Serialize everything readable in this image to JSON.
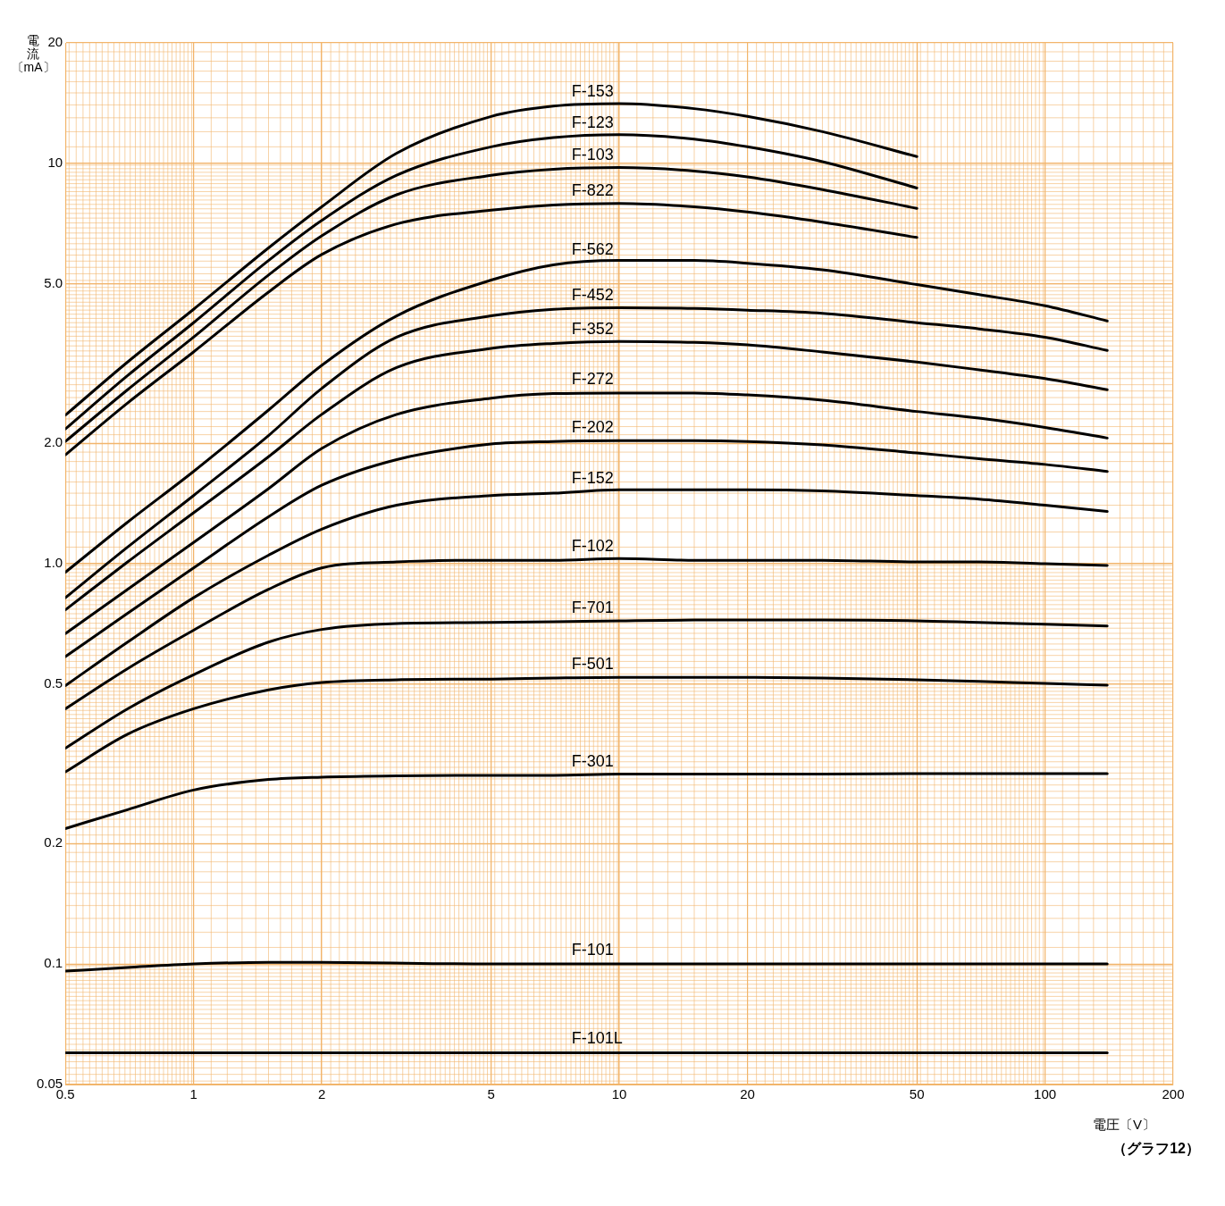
{
  "chart_data": {
    "type": "line",
    "xlabel": "電圧〔V〕",
    "ylabel": "電流〔mA〕",
    "annotations": [
      "（グラフ12）"
    ],
    "log": "xy",
    "grid": true,
    "legend": false,
    "marker": "none",
    "line_style": "solid",
    "xlim": [
      0.5,
      200
    ],
    "xticks": [
      0.5,
      1,
      2,
      5,
      10,
      20,
      50,
      100,
      200
    ],
    "ylim": [
      0.05,
      20
    ],
    "yticks": [
      0.05,
      0.1,
      0.2,
      0.5,
      {
        "value": 1,
        "label": "1.0"
      },
      {
        "value": 2,
        "label": "2.0"
      },
      {
        "value": 5,
        "label": "5.0"
      },
      10,
      20
    ],
    "x": [
      0.5,
      0.7,
      1,
      1.5,
      2,
      3,
      5,
      7,
      10,
      15,
      20,
      30,
      50,
      70,
      100,
      140
    ],
    "series": [
      {
        "name": "F-153",
        "color": "#000000",
        "x": [
          0.5,
          0.7,
          1,
          1.5,
          2,
          3,
          5,
          7,
          10,
          15,
          20,
          30,
          50
        ],
        "values": [
          2.35,
          3.19,
          4.32,
          6.15,
          7.79,
          10.6,
          13.1,
          13.9,
          14.1,
          13.7,
          13.1,
          12.0,
          10.4
        ]
      },
      {
        "name": "F-123",
        "color": "#000000",
        "x": [
          0.5,
          0.7,
          1,
          1.5,
          2,
          3,
          5,
          7,
          10,
          15,
          20,
          30,
          50
        ],
        "values": [
          2.17,
          2.95,
          4.0,
          5.72,
          7.2,
          9.34,
          11.0,
          11.6,
          11.8,
          11.5,
          11.0,
          10.1,
          8.68
        ]
      },
      {
        "name": "F-103",
        "color": "#000000",
        "x": [
          0.5,
          0.7,
          1,
          1.5,
          2,
          3,
          5,
          7,
          10,
          15,
          20,
          30,
          50
        ],
        "values": [
          2.02,
          2.72,
          3.68,
          5.26,
          6.59,
          8.35,
          9.34,
          9.67,
          9.76,
          9.57,
          9.25,
          8.6,
          7.72
        ]
      },
      {
        "name": "F-822",
        "color": "#000000",
        "x": [
          0.5,
          0.7,
          1,
          1.5,
          2,
          3,
          5,
          7,
          10,
          15,
          20,
          30,
          50
        ],
        "values": [
          1.87,
          2.52,
          3.38,
          4.77,
          5.92,
          7.06,
          7.64,
          7.87,
          7.94,
          7.79,
          7.56,
          7.13,
          6.53
        ]
      },
      {
        "name": "F-562",
        "color": "#000000",
        "values": [
          0.952,
          1.27,
          1.7,
          2.42,
          3.13,
          4.16,
          5.11,
          5.58,
          5.72,
          5.72,
          5.63,
          5.42,
          4.98,
          4.7,
          4.41,
          4.04
        ]
      },
      {
        "name": "F-452",
        "color": "#000000",
        "values": [
          0.822,
          1.1,
          1.48,
          2.09,
          2.74,
          3.68,
          4.16,
          4.32,
          4.36,
          4.34,
          4.3,
          4.22,
          4.0,
          3.86,
          3.68,
          3.41
        ]
      },
      {
        "name": "F-352",
        "color": "#000000",
        "values": [
          0.767,
          1.01,
          1.34,
          1.85,
          2.36,
          3.09,
          3.45,
          3.55,
          3.59,
          3.57,
          3.52,
          3.38,
          3.19,
          3.05,
          2.9,
          2.72
        ]
      },
      {
        "name": "F-272",
        "color": "#000000",
        "values": [
          0.669,
          0.863,
          1.13,
          1.54,
          1.94,
          2.36,
          2.59,
          2.66,
          2.67,
          2.67,
          2.64,
          2.56,
          2.4,
          2.31,
          2.19,
          2.06
        ]
      },
      {
        "name": "F-202",
        "color": "#000000",
        "values": [
          0.586,
          0.752,
          0.976,
          1.31,
          1.57,
          1.82,
          1.99,
          2.02,
          2.03,
          2.03,
          2.02,
          1.98,
          1.89,
          1.83,
          1.77,
          1.7
        ]
      },
      {
        "name": "F-152",
        "color": "#000000",
        "values": [
          0.496,
          0.637,
          0.822,
          1.05,
          1.22,
          1.4,
          1.48,
          1.5,
          1.53,
          1.53,
          1.53,
          1.52,
          1.48,
          1.45,
          1.4,
          1.35
        ]
      },
      {
        "name": "F-102",
        "color": "#000000",
        "values": [
          0.434,
          0.547,
          0.682,
          0.863,
          0.976,
          1.01,
          1.02,
          1.02,
          1.03,
          1.02,
          1.02,
          1.02,
          1.01,
          1.01,
          1.0,
          0.99
        ]
      },
      {
        "name": "F-701",
        "color": "#000000",
        "values": [
          0.346,
          0.434,
          0.528,
          0.637,
          0.685,
          0.709,
          0.713,
          0.716,
          0.72,
          0.723,
          0.723,
          0.723,
          0.72,
          0.713,
          0.706,
          0.699
        ]
      },
      {
        "name": "F-501",
        "color": "#000000",
        "values": [
          0.302,
          0.375,
          0.434,
          0.484,
          0.505,
          0.513,
          0.515,
          0.518,
          0.52,
          0.52,
          0.52,
          0.518,
          0.513,
          0.508,
          0.502,
          0.497
        ]
      },
      {
        "name": "F-301",
        "color": "#000000",
        "values": [
          0.218,
          0.243,
          0.272,
          0.289,
          0.293,
          0.295,
          0.296,
          0.296,
          0.298,
          0.298,
          0.298,
          0.298,
          0.299,
          0.299,
          0.299,
          0.299
        ]
      },
      {
        "name": "F-101",
        "color": "#000000",
        "x": [
          0.5,
          0.7,
          1,
          1.5,
          2,
          5,
          10,
          20,
          50,
          100,
          140
        ],
        "values": [
          0.096,
          0.098,
          0.1,
          0.101,
          0.101,
          0.1,
          0.1,
          0.1,
          0.1,
          0.1,
          0.1
        ]
      },
      {
        "name": "F-101L",
        "color": "#000000",
        "x": [
          0.5,
          140
        ],
        "values": [
          0.06,
          0.06
        ]
      }
    ]
  }
}
